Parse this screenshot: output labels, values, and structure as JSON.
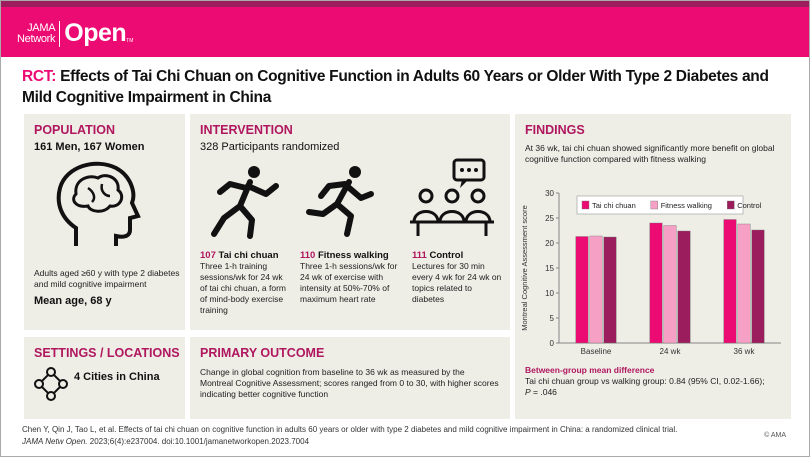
{
  "header": {
    "logo_line1": "JAMA",
    "logo_line2": "Network",
    "logo_big": "Open",
    "logo_tm": "TM",
    "strip_color": "#9c1d5e",
    "brand_color": "#ec0b73"
  },
  "title": {
    "prefix": "RCT:",
    "text": "Effects of Tai Chi Chuan on Cognitive Function in Adults 60 Years or Older With Type 2 Diabetes and Mild Cognitive Impairment in China"
  },
  "population": {
    "heading": "POPULATION",
    "subheading": "161 Men, 167 Women",
    "description": "Adults aged ≥60 y with type 2 diabetes and mild cognitive impairment",
    "mean_age": "Mean age, 68 y",
    "icon": "brain-head-icon"
  },
  "intervention": {
    "heading": "INTERVENTION",
    "subheading": "328 Participants randomized",
    "arms": [
      {
        "count": "107",
        "name": "Tai chi chuan",
        "description": "Three 1-h training sessions/wk for 24 wk of tai chi chuan, a form of mind-body exercise training",
        "icon": "tai-chi-figure-icon"
      },
      {
        "count": "110",
        "name": "Fitness walking",
        "description": "Three 1-h sessions/wk for 24 wk of exercise with intensity at 50%-70% of maximum heart rate",
        "icon": "running-figure-icon"
      },
      {
        "count": "111",
        "name": "Control",
        "description": "Lectures for 30 min every 4 wk for 24 wk on topics related to diabetes",
        "icon": "lecture-group-icon"
      }
    ]
  },
  "settings": {
    "heading": "SETTINGS / LOCATIONS",
    "subheading": "4 Cities in China",
    "icon": "network-nodes-icon"
  },
  "primary_outcome": {
    "heading": "PRIMARY OUTCOME",
    "text": "Change in global cognition from baseline to 36 wk as measured by the Montreal Cognitive Assessment; scores ranged from 0 to 30, with higher scores indicating better cognitive function"
  },
  "findings": {
    "heading": "FINDINGS",
    "text": "At 36 wk, tai chi chuan showed significantly more benefit on global cognitive function compared with fitness walking",
    "diff_heading": "Between-group mean difference",
    "diff_text": "Tai chi chuan group vs walking group: 0.84 (95% CI, 0.02-1.66);",
    "p_label": "P",
    "p_value": " = .046"
  },
  "chart_data": {
    "type": "bar",
    "categories": [
      "Baseline",
      "24 wk",
      "36 wk"
    ],
    "ylabel": "Montreal Cognitive Assessment score",
    "ylim": [
      0,
      30
    ],
    "yticks": [
      0,
      5,
      10,
      15,
      20,
      25,
      30
    ],
    "grid": false,
    "legend": "top",
    "series": [
      {
        "name": "Tai chi chuan",
        "color": "#ec0b73",
        "values": [
          21.3,
          24.0,
          24.7
        ]
      },
      {
        "name": "Fitness walking",
        "color": "#f6a0c6",
        "values": [
          21.4,
          23.5,
          23.8
        ]
      },
      {
        "name": "Control",
        "color": "#9c1d5e",
        "values": [
          21.2,
          22.4,
          22.6
        ]
      }
    ]
  },
  "citation": {
    "line1": "Chen Y, Qin J, Tao L, et al. Effects of tai chi chuan on cognitive function in adults 60 years or older with type 2 diabetes and mild cognitive impairment in China: a randomized clinical trial.",
    "journal": "JAMA Netw Open.",
    "line2": " 2023;6(4):e237004. doi:10.1001/jamanetworkopen.2023.7004",
    "copyright": "© AMA"
  }
}
